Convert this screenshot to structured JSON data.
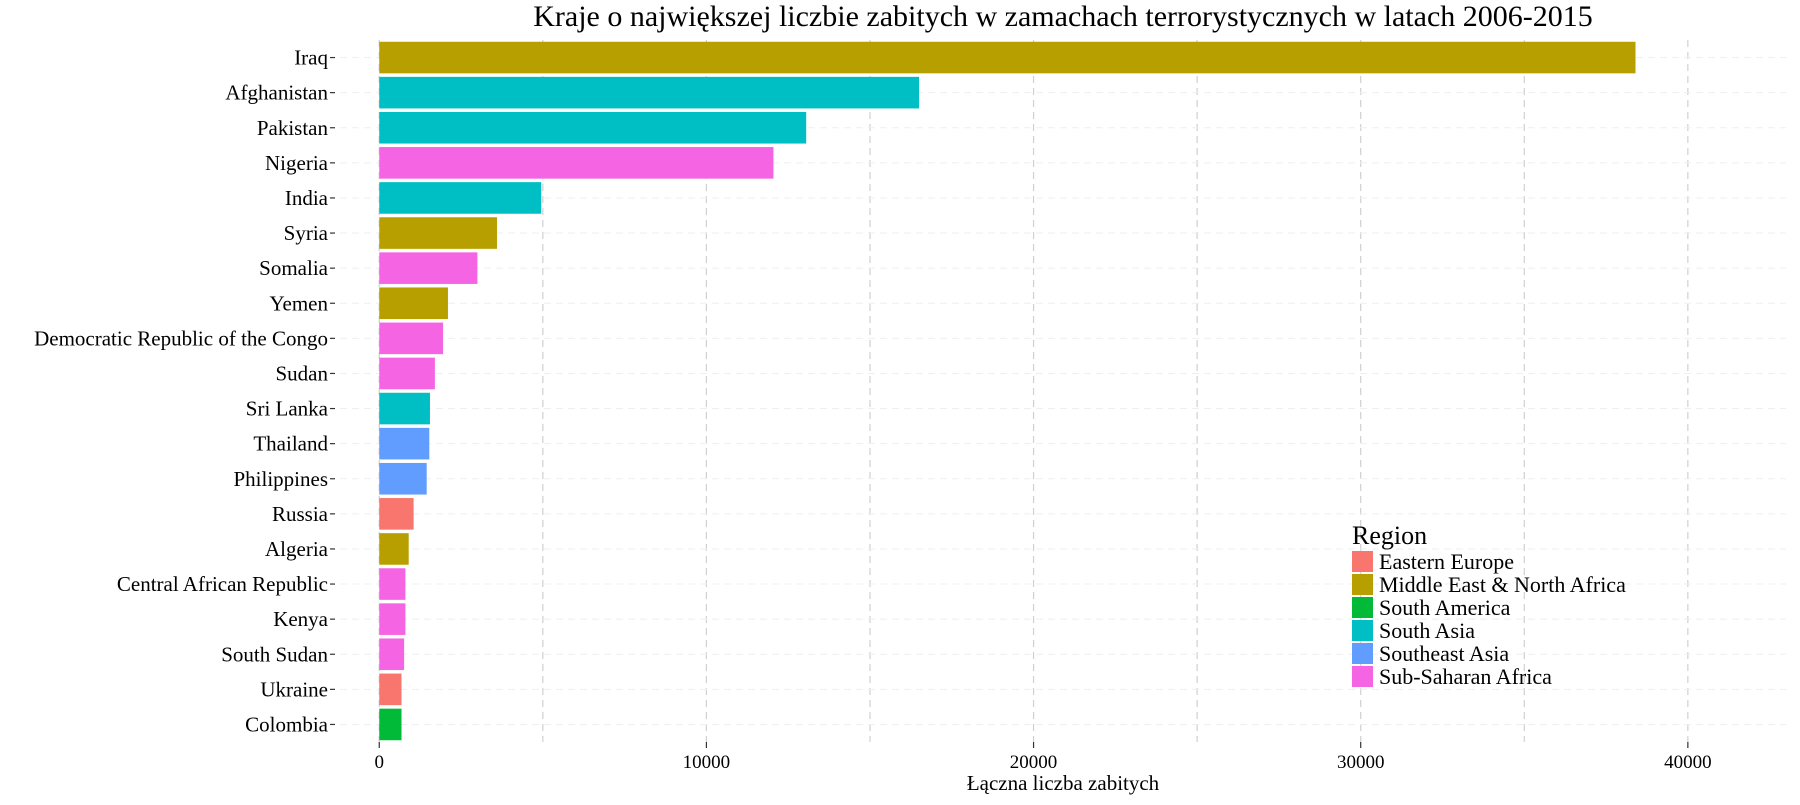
{
  "chart_data": {
    "type": "bar",
    "orientation": "horizontal",
    "title": "Kraje o największej liczbie zabitych w zamachach terrorystycznych w latach 2006-2015",
    "xlabel": "Łączna liczba zabitych",
    "ylabel": "",
    "xlim": [
      -1200,
      43000
    ],
    "xticks": [
      0,
      10000,
      20000,
      30000,
      40000
    ],
    "xtick_labels": [
      "0",
      "10000",
      "20000",
      "30000",
      "40000"
    ],
    "grid": true,
    "legend": {
      "title": "Region",
      "placement": "bottom-right",
      "entries": [
        {
          "name": "Eastern Europe",
          "color": "#F8766D"
        },
        {
          "name": "Middle East & North Africa",
          "color": "#B79F00"
        },
        {
          "name": "South America",
          "color": "#00BA38"
        },
        {
          "name": "South Asia",
          "color": "#00BFC4"
        },
        {
          "name": "Southeast Asia",
          "color": "#619CFF"
        },
        {
          "name": "Sub-Saharan Africa",
          "color": "#F564E3"
        }
      ]
    },
    "categories": [
      "Iraq",
      "Afghanistan",
      "Pakistan",
      "Nigeria",
      "India",
      "Syria",
      "Somalia",
      "Yemen",
      "Democratic Republic of the Congo",
      "Sudan",
      "Sri Lanka",
      "Thailand",
      "Philippines",
      "Russia",
      "Algeria",
      "Central African Republic",
      "Kenya",
      "South Sudan",
      "Ukraine",
      "Colombia"
    ],
    "values": [
      38400,
      16500,
      13050,
      12050,
      4950,
      3600,
      3000,
      2100,
      1950,
      1700,
      1550,
      1530,
      1450,
      1050,
      900,
      800,
      800,
      760,
      680,
      680
    ],
    "regions": [
      "Middle East & North Africa",
      "South Asia",
      "South Asia",
      "Sub-Saharan Africa",
      "South Asia",
      "Middle East & North Africa",
      "Sub-Saharan Africa",
      "Middle East & North Africa",
      "Sub-Saharan Africa",
      "Sub-Saharan Africa",
      "South Asia",
      "Southeast Asia",
      "Southeast Asia",
      "Eastern Europe",
      "Middle East & North Africa",
      "Sub-Saharan Africa",
      "Sub-Saharan Africa",
      "Sub-Saharan Africa",
      "Eastern Europe",
      "South America"
    ]
  }
}
